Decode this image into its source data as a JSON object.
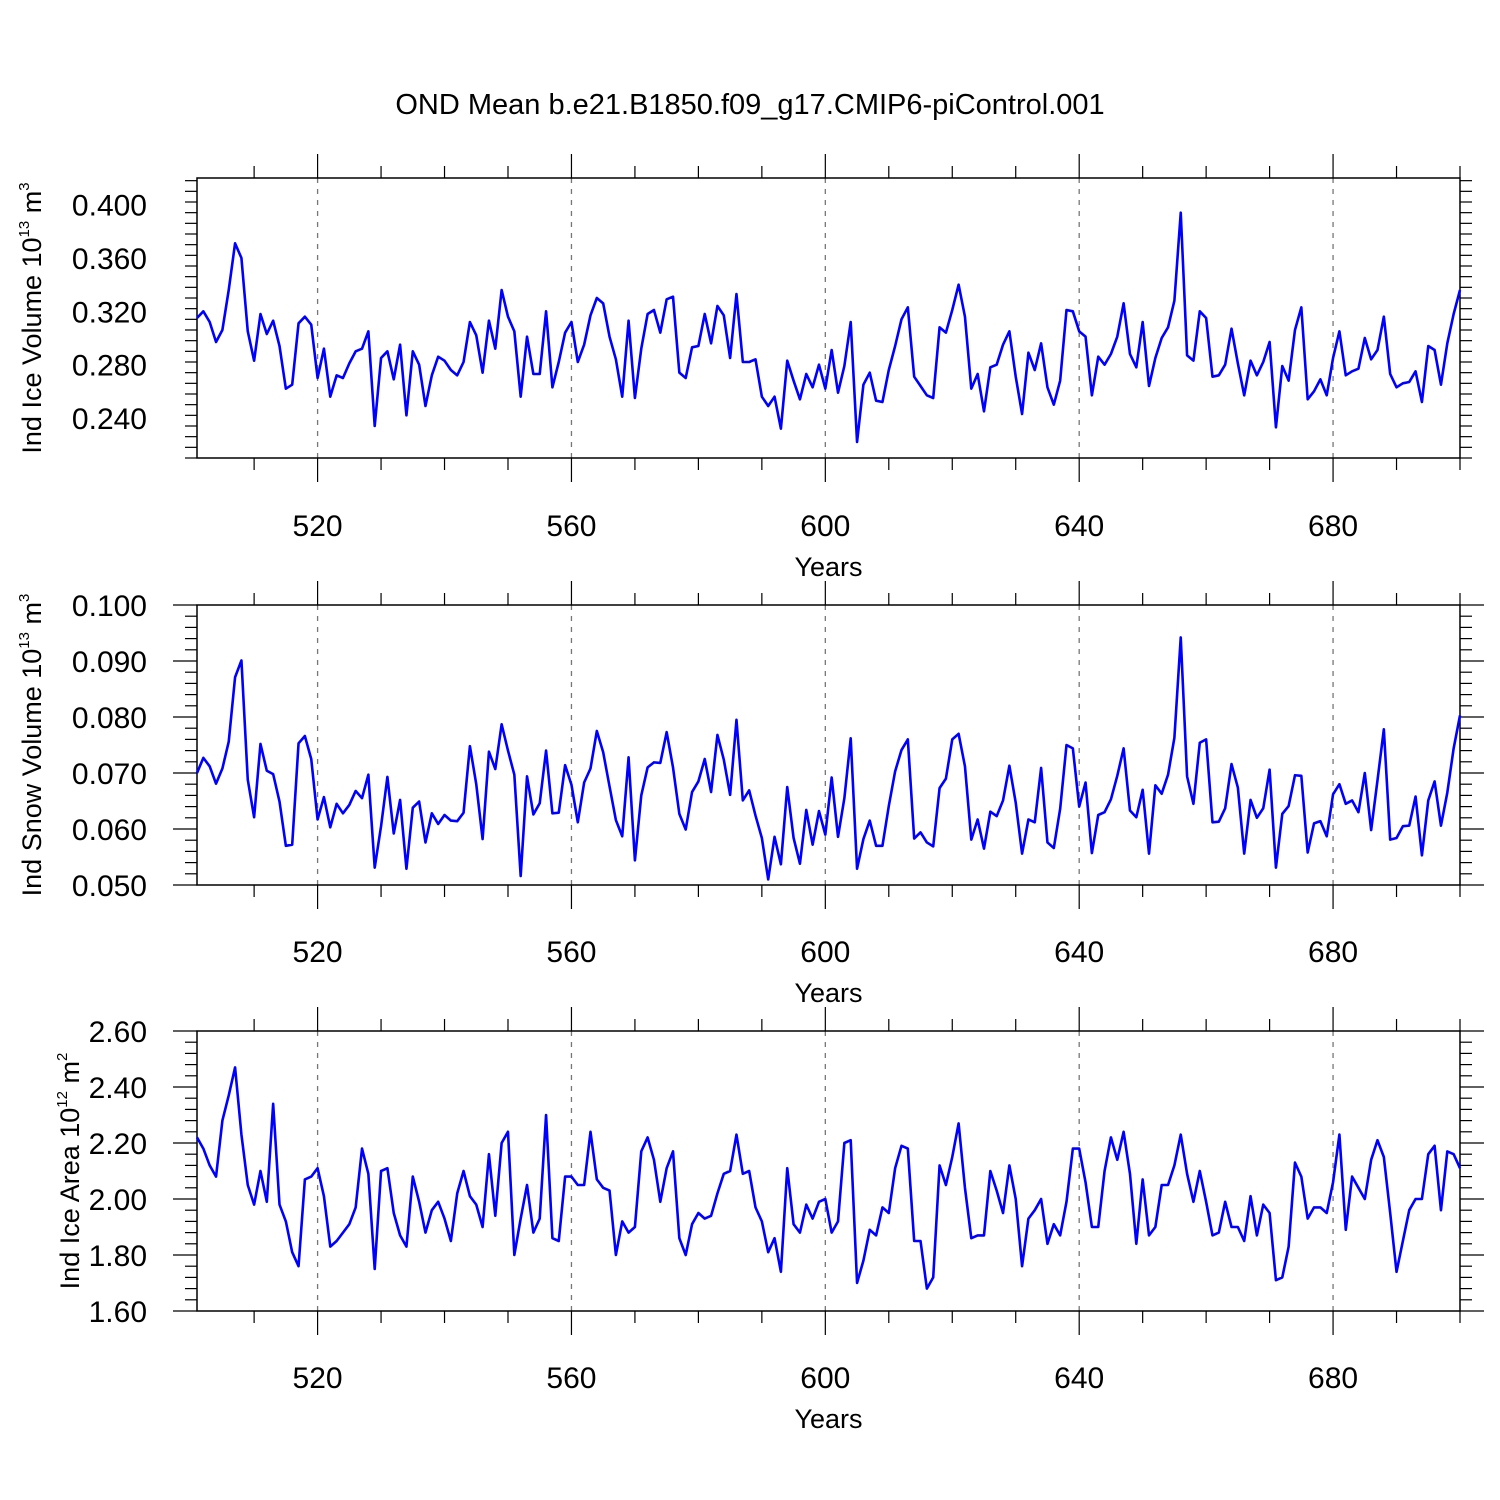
{
  "title": "OND Mean b.e21.B1850.f09_g17.CMIP6-piControl.001",
  "chart_data": [
    {
      "type": "line",
      "xlabel": "Years",
      "ylabel": {
        "main": "Ind Ice Volume 10",
        "exp": "13",
        "unit": " m",
        "unit_exp": "3"
      },
      "xlim": [
        501,
        700
      ],
      "ylim": [
        0.21,
        0.42
      ],
      "xticks": [
        "520",
        "560",
        "600",
        "640",
        "680"
      ],
      "yticks": [
        "0.400",
        "0.360",
        "0.320",
        "0.280",
        "0.240"
      ],
      "grid": "vertical dashed at major x ticks",
      "color": "#0000ff",
      "series": [
        {
          "x_start": 501,
          "values": [
            0.315,
            0.32,
            0.312,
            0.297,
            0.306,
            0.336,
            0.371,
            0.36,
            0.305,
            0.283,
            0.318,
            0.303,
            0.313,
            0.294,
            0.262,
            0.265,
            0.311,
            0.316,
            0.31,
            0.27,
            0.292,
            0.256,
            0.272,
            0.27,
            0.281,
            0.29,
            0.292,
            0.305,
            0.234,
            0.285,
            0.29,
            0.269,
            0.295,
            0.242,
            0.29,
            0.28,
            0.249,
            0.272,
            0.286,
            0.283,
            0.276,
            0.272,
            0.282,
            0.312,
            0.302,
            0.274,
            0.313,
            0.292,
            0.336,
            0.316,
            0.305,
            0.256,
            0.301,
            0.273,
            0.273,
            0.32,
            0.263,
            0.282,
            0.304,
            0.312,
            0.282,
            0.295,
            0.317,
            0.33,
            0.326,
            0.301,
            0.284,
            0.256,
            0.313,
            0.255,
            0.292,
            0.318,
            0.321,
            0.304,
            0.329,
            0.331,
            0.274,
            0.27,
            0.293,
            0.294,
            0.318,
            0.296,
            0.324,
            0.317,
            0.285,
            0.333,
            0.282,
            0.282,
            0.284,
            0.256,
            0.249,
            0.256,
            0.232,
            0.283,
            0.268,
            0.254,
            0.273,
            0.263,
            0.28,
            0.262,
            0.291,
            0.259,
            0.279,
            0.312,
            0.222,
            0.265,
            0.274,
            0.253,
            0.252,
            0.276,
            0.294,
            0.314,
            0.323,
            0.271,
            0.264,
            0.257,
            0.255,
            0.308,
            0.304,
            0.321,
            0.34,
            0.316,
            0.262,
            0.273,
            0.245,
            0.278,
            0.28,
            0.295,
            0.305,
            0.271,
            0.243,
            0.289,
            0.276,
            0.296,
            0.263,
            0.25,
            0.268,
            0.321,
            0.32,
            0.305,
            0.301,
            0.257,
            0.286,
            0.28,
            0.288,
            0.301,
            0.326,
            0.288,
            0.278,
            0.312,
            0.264,
            0.285,
            0.3,
            0.308,
            0.328,
            0.394,
            0.287,
            0.283,
            0.32,
            0.315,
            0.271,
            0.272,
            0.28,
            0.307,
            0.281,
            0.257,
            0.283,
            0.272,
            0.282,
            0.297,
            0.233,
            0.279,
            0.268,
            0.306,
            0.323,
            0.254,
            0.26,
            0.269,
            0.257,
            0.285,
            0.305,
            0.272,
            0.275,
            0.277,
            0.3,
            0.284,
            0.291,
            0.316,
            0.273,
            0.263,
            0.266,
            0.267,
            0.275,
            0.252,
            0.294,
            0.291,
            0.265,
            0.296,
            0.318,
            0.336
          ]
        }
      ]
    },
    {
      "type": "line",
      "xlabel": "Years",
      "ylabel": {
        "main": "Ind Snow Volume 10",
        "exp": "13",
        "unit": " m",
        "unit_exp": "3"
      },
      "xlim": [
        501,
        700
      ],
      "ylim": [
        0.05,
        0.1
      ],
      "xticks": [
        "520",
        "560",
        "600",
        "640",
        "680"
      ],
      "yticks": [
        "0.100",
        "0.090",
        "0.080",
        "0.070",
        "0.060",
        "0.050"
      ],
      "grid": "vertical dashed at major x ticks",
      "color": "#0000ff",
      "series": [
        {
          "x_start": 501,
          "values": [
            0.07,
            0.0727,
            0.0712,
            0.0681,
            0.0708,
            0.0756,
            0.0871,
            0.0901,
            0.0688,
            0.0621,
            0.0752,
            0.0704,
            0.0698,
            0.0649,
            0.057,
            0.0572,
            0.0753,
            0.0766,
            0.0725,
            0.0617,
            0.0657,
            0.0603,
            0.0645,
            0.0628,
            0.0643,
            0.0668,
            0.0655,
            0.0697,
            0.0531,
            0.0605,
            0.0693,
            0.0592,
            0.0652,
            0.0529,
            0.0638,
            0.0649,
            0.0576,
            0.0628,
            0.0609,
            0.0625,
            0.0615,
            0.0614,
            0.0629,
            0.0748,
            0.068,
            0.0582,
            0.0738,
            0.0707,
            0.0787,
            0.074,
            0.0697,
            0.0516,
            0.0694,
            0.0626,
            0.0646,
            0.074,
            0.0628,
            0.0629,
            0.0714,
            0.0679,
            0.0612,
            0.0683,
            0.0708,
            0.0775,
            0.0737,
            0.0676,
            0.0616,
            0.0587,
            0.0728,
            0.0544,
            0.066,
            0.071,
            0.0719,
            0.0718,
            0.0773,
            0.071,
            0.0627,
            0.0599,
            0.0666,
            0.0685,
            0.0725,
            0.0666,
            0.0768,
            0.0724,
            0.0661,
            0.0795,
            0.0651,
            0.0669,
            0.0624,
            0.0584,
            0.051,
            0.0586,
            0.0537,
            0.0675,
            0.0584,
            0.0538,
            0.0634,
            0.0572,
            0.0632,
            0.059,
            0.0692,
            0.0586,
            0.0655,
            0.0762,
            0.0529,
            0.0582,
            0.0615,
            0.057,
            0.057,
            0.0641,
            0.0703,
            0.0741,
            0.076,
            0.0583,
            0.0594,
            0.0576,
            0.0569,
            0.0673,
            0.069,
            0.076,
            0.077,
            0.0712,
            0.0581,
            0.0617,
            0.0565,
            0.0631,
            0.0623,
            0.0651,
            0.0713,
            0.0647,
            0.0556,
            0.0617,
            0.0612,
            0.0709,
            0.0576,
            0.0566,
            0.0636,
            0.075,
            0.0744,
            0.064,
            0.0683,
            0.0557,
            0.0625,
            0.063,
            0.0653,
            0.0695,
            0.0744,
            0.0633,
            0.0621,
            0.067,
            0.0556,
            0.0678,
            0.0663,
            0.0697,
            0.0763,
            0.0942,
            0.0694,
            0.0645,
            0.0754,
            0.076,
            0.0612,
            0.0613,
            0.0637,
            0.0716,
            0.0674,
            0.0556,
            0.0652,
            0.062,
            0.0637,
            0.0706,
            0.0531,
            0.0627,
            0.0641,
            0.0696,
            0.0695,
            0.0558,
            0.061,
            0.0614,
            0.0587,
            0.0662,
            0.068,
            0.0645,
            0.0651,
            0.063,
            0.07,
            0.0598,
            0.0687,
            0.0778,
            0.0581,
            0.0584,
            0.0605,
            0.0606,
            0.0658,
            0.0553,
            0.0651,
            0.0685,
            0.0606,
            0.0665,
            0.0744,
            0.0803
          ]
        }
      ]
    },
    {
      "type": "line",
      "xlabel": "Years",
      "ylabel": {
        "main": "Ind Ice Area 10",
        "exp": "12",
        "unit": " m",
        "unit_exp": "2"
      },
      "xlim": [
        501,
        700
      ],
      "ylim": [
        1.6,
        2.6
      ],
      "xticks": [
        "520",
        "560",
        "600",
        "640",
        "680"
      ],
      "yticks": [
        "2.60",
        "2.40",
        "2.20",
        "2.00",
        "1.80",
        "1.60"
      ],
      "grid": "vertical dashed at major x ticks",
      "color": "#0000ff",
      "series": [
        {
          "x_start": 501,
          "values": [
            2.22,
            2.18,
            2.12,
            2.08,
            2.28,
            2.37,
            2.47,
            2.23,
            2.05,
            1.98,
            2.1,
            1.99,
            2.34,
            1.98,
            1.92,
            1.81,
            1.76,
            2.07,
            2.08,
            2.11,
            2.01,
            1.83,
            1.85,
            1.88,
            1.91,
            1.97,
            2.18,
            2.09,
            1.75,
            2.1,
            2.11,
            1.95,
            1.87,
            1.83,
            2.08,
            1.99,
            1.88,
            1.96,
            1.99,
            1.93,
            1.85,
            2.02,
            2.1,
            2.01,
            1.98,
            1.9,
            2.16,
            1.94,
            2.2,
            2.24,
            1.8,
            1.93,
            2.05,
            1.88,
            1.93,
            2.3,
            1.86,
            1.85,
            2.08,
            2.08,
            2.05,
            2.05,
            2.24,
            2.07,
            2.04,
            2.03,
            1.8,
            1.92,
            1.88,
            1.9,
            2.17,
            2.22,
            2.14,
            1.99,
            2.11,
            2.17,
            1.86,
            1.8,
            1.91,
            1.95,
            1.93,
            1.94,
            2.02,
            2.09,
            2.1,
            2.23,
            2.09,
            2.1,
            1.97,
            1.92,
            1.81,
            1.86,
            1.74,
            2.11,
            1.91,
            1.88,
            1.98,
            1.93,
            1.99,
            2.0,
            1.88,
            1.92,
            2.2,
            2.21,
            1.7,
            1.78,
            1.89,
            1.87,
            1.97,
            1.95,
            2.11,
            2.19,
            2.18,
            1.85,
            1.85,
            1.68,
            1.72,
            2.12,
            2.05,
            2.15,
            2.27,
            2.04,
            1.86,
            1.87,
            1.87,
            2.1,
            2.03,
            1.95,
            2.12,
            2.0,
            1.76,
            1.93,
            1.96,
            2.0,
            1.84,
            1.91,
            1.87,
            1.99,
            2.18,
            2.18,
            2.06,
            1.9,
            1.9,
            2.1,
            2.22,
            2.14,
            2.24,
            2.09,
            1.84,
            2.07,
            1.87,
            1.9,
            2.05,
            2.05,
            2.12,
            2.23,
            2.09,
            1.99,
            2.1,
            1.99,
            1.87,
            1.88,
            1.99,
            1.9,
            1.9,
            1.85,
            2.01,
            1.87,
            1.98,
            1.95,
            1.71,
            1.72,
            1.83,
            2.13,
            2.08,
            1.93,
            1.97,
            1.97,
            1.95,
            2.06,
            2.23,
            1.89,
            2.08,
            2.04,
            2.0,
            2.14,
            2.21,
            2.15,
            1.95,
            1.74,
            1.85,
            1.96,
            2.0,
            2.0,
            2.16,
            2.19,
            1.96,
            2.17,
            2.16,
            2.11
          ]
        }
      ]
    }
  ]
}
